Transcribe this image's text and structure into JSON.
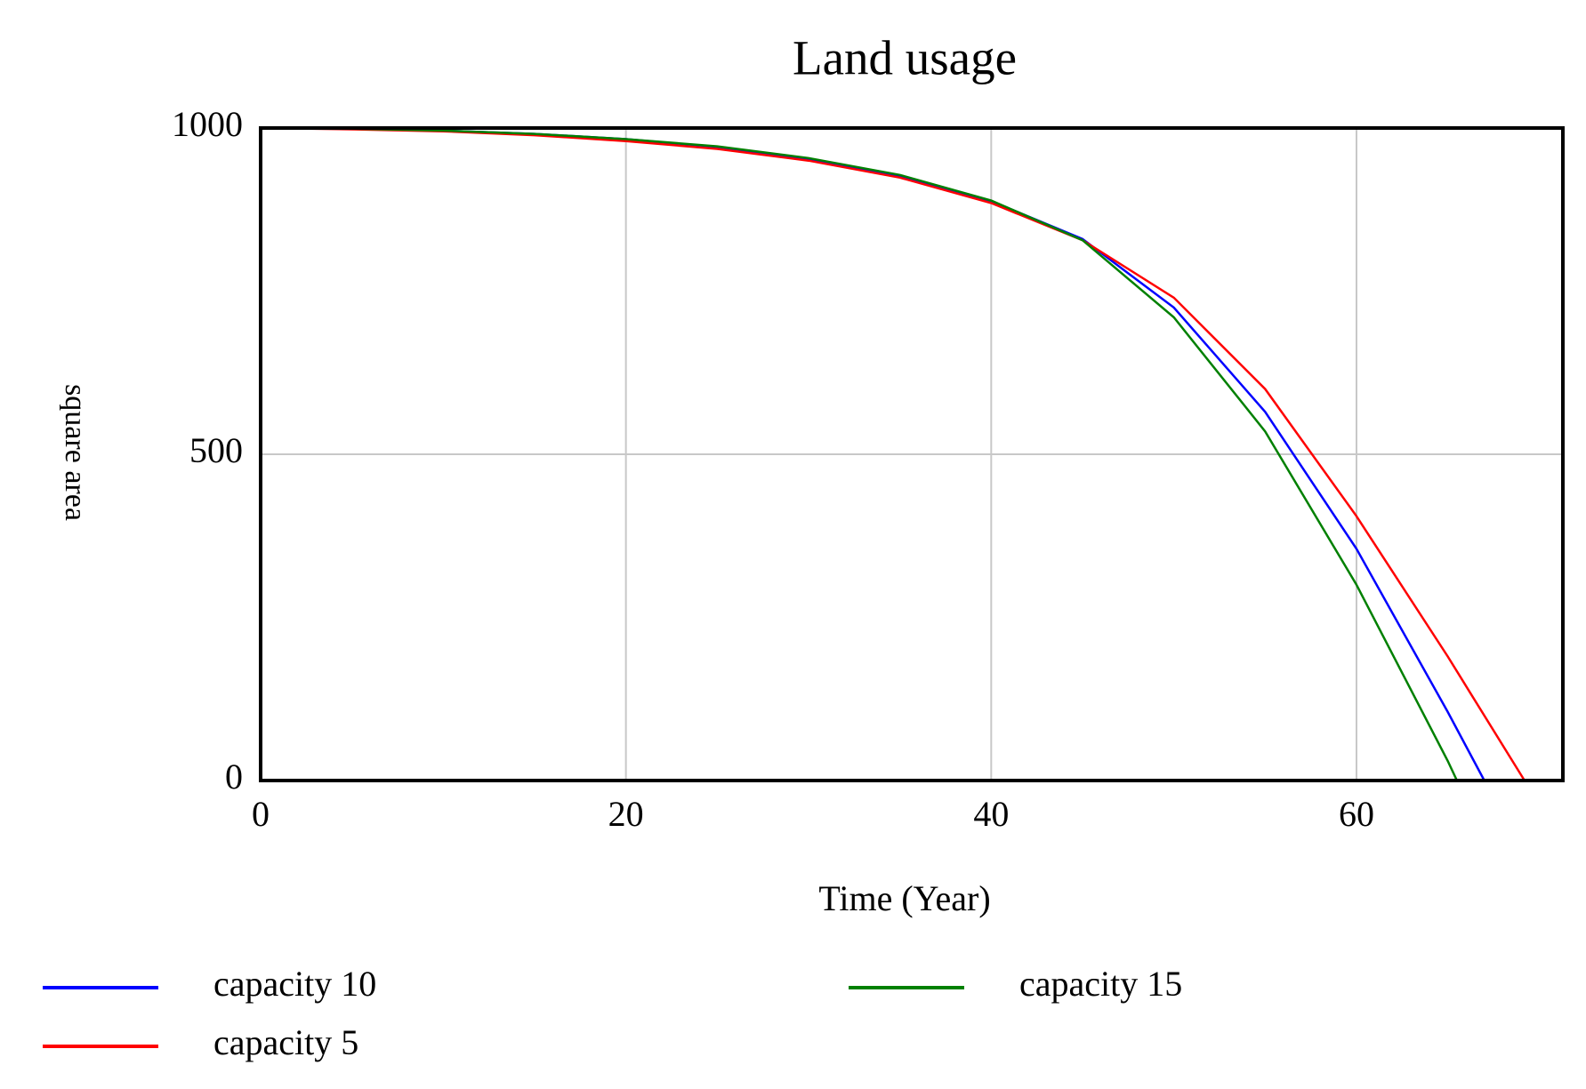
{
  "chart_data": {
    "type": "line",
    "title": "Land usage",
    "x_label": "Time (Year)",
    "y_label": "square area",
    "xlim": [
      0,
      71.3
    ],
    "xticks": [
      0,
      20,
      40,
      60
    ],
    "ylim": [
      0,
      1000
    ],
    "yticks": [
      0,
      500,
      1000
    ],
    "grid": true,
    "series": [
      {
        "name": "capacity 10",
        "color": "#0000ff",
        "x": [
          0,
          5,
          10,
          15,
          20,
          25,
          30,
          35,
          40,
          45,
          50,
          55,
          60,
          65,
          67
        ],
        "values": [
          1000,
          999,
          996,
          991,
          983,
          971,
          953,
          927,
          888,
          830,
          725,
          565,
          355,
          105,
          0
        ]
      },
      {
        "name": "capacity 5",
        "color": "#ff0000",
        "x": [
          0,
          5,
          10,
          15,
          20,
          25,
          30,
          35,
          40,
          45,
          50,
          55,
          60,
          65,
          69.2
        ],
        "values": [
          1000,
          998,
          995,
          989,
          980,
          968,
          950,
          924,
          885,
          828,
          740,
          600,
          405,
          190,
          0
        ]
      },
      {
        "name": "capacity 15",
        "color": "#008000",
        "x": [
          0,
          5,
          10,
          15,
          20,
          25,
          30,
          35,
          40,
          45,
          50,
          55,
          60,
          65,
          65.5
        ],
        "values": [
          1000,
          999,
          996,
          991,
          983,
          972,
          954,
          928,
          889,
          828,
          710,
          535,
          300,
          30,
          0
        ]
      }
    ]
  }
}
